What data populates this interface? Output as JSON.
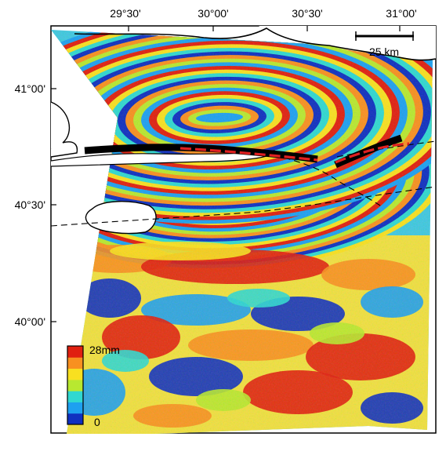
{
  "map": {
    "lon_ticks": [
      "29°30'",
      "30°00'",
      "30°30'",
      "31°00'"
    ],
    "lat_ticks": [
      "41°00'",
      "40°30'",
      "40°00'"
    ],
    "scale_bar": {
      "label": "25 km",
      "distance_km": 25
    },
    "colorbar": {
      "max_label": "28mm",
      "min_label": "0",
      "cycle_mm": 28,
      "colors": [
        "#1030c0",
        "#1ea0f0",
        "#30d8d0",
        "#b8e830",
        "#f8e020",
        "#f89020",
        "#e02010"
      ]
    },
    "fault_colors": {
      "rupture": "#000000",
      "surface_break": "#e02020"
    }
  }
}
